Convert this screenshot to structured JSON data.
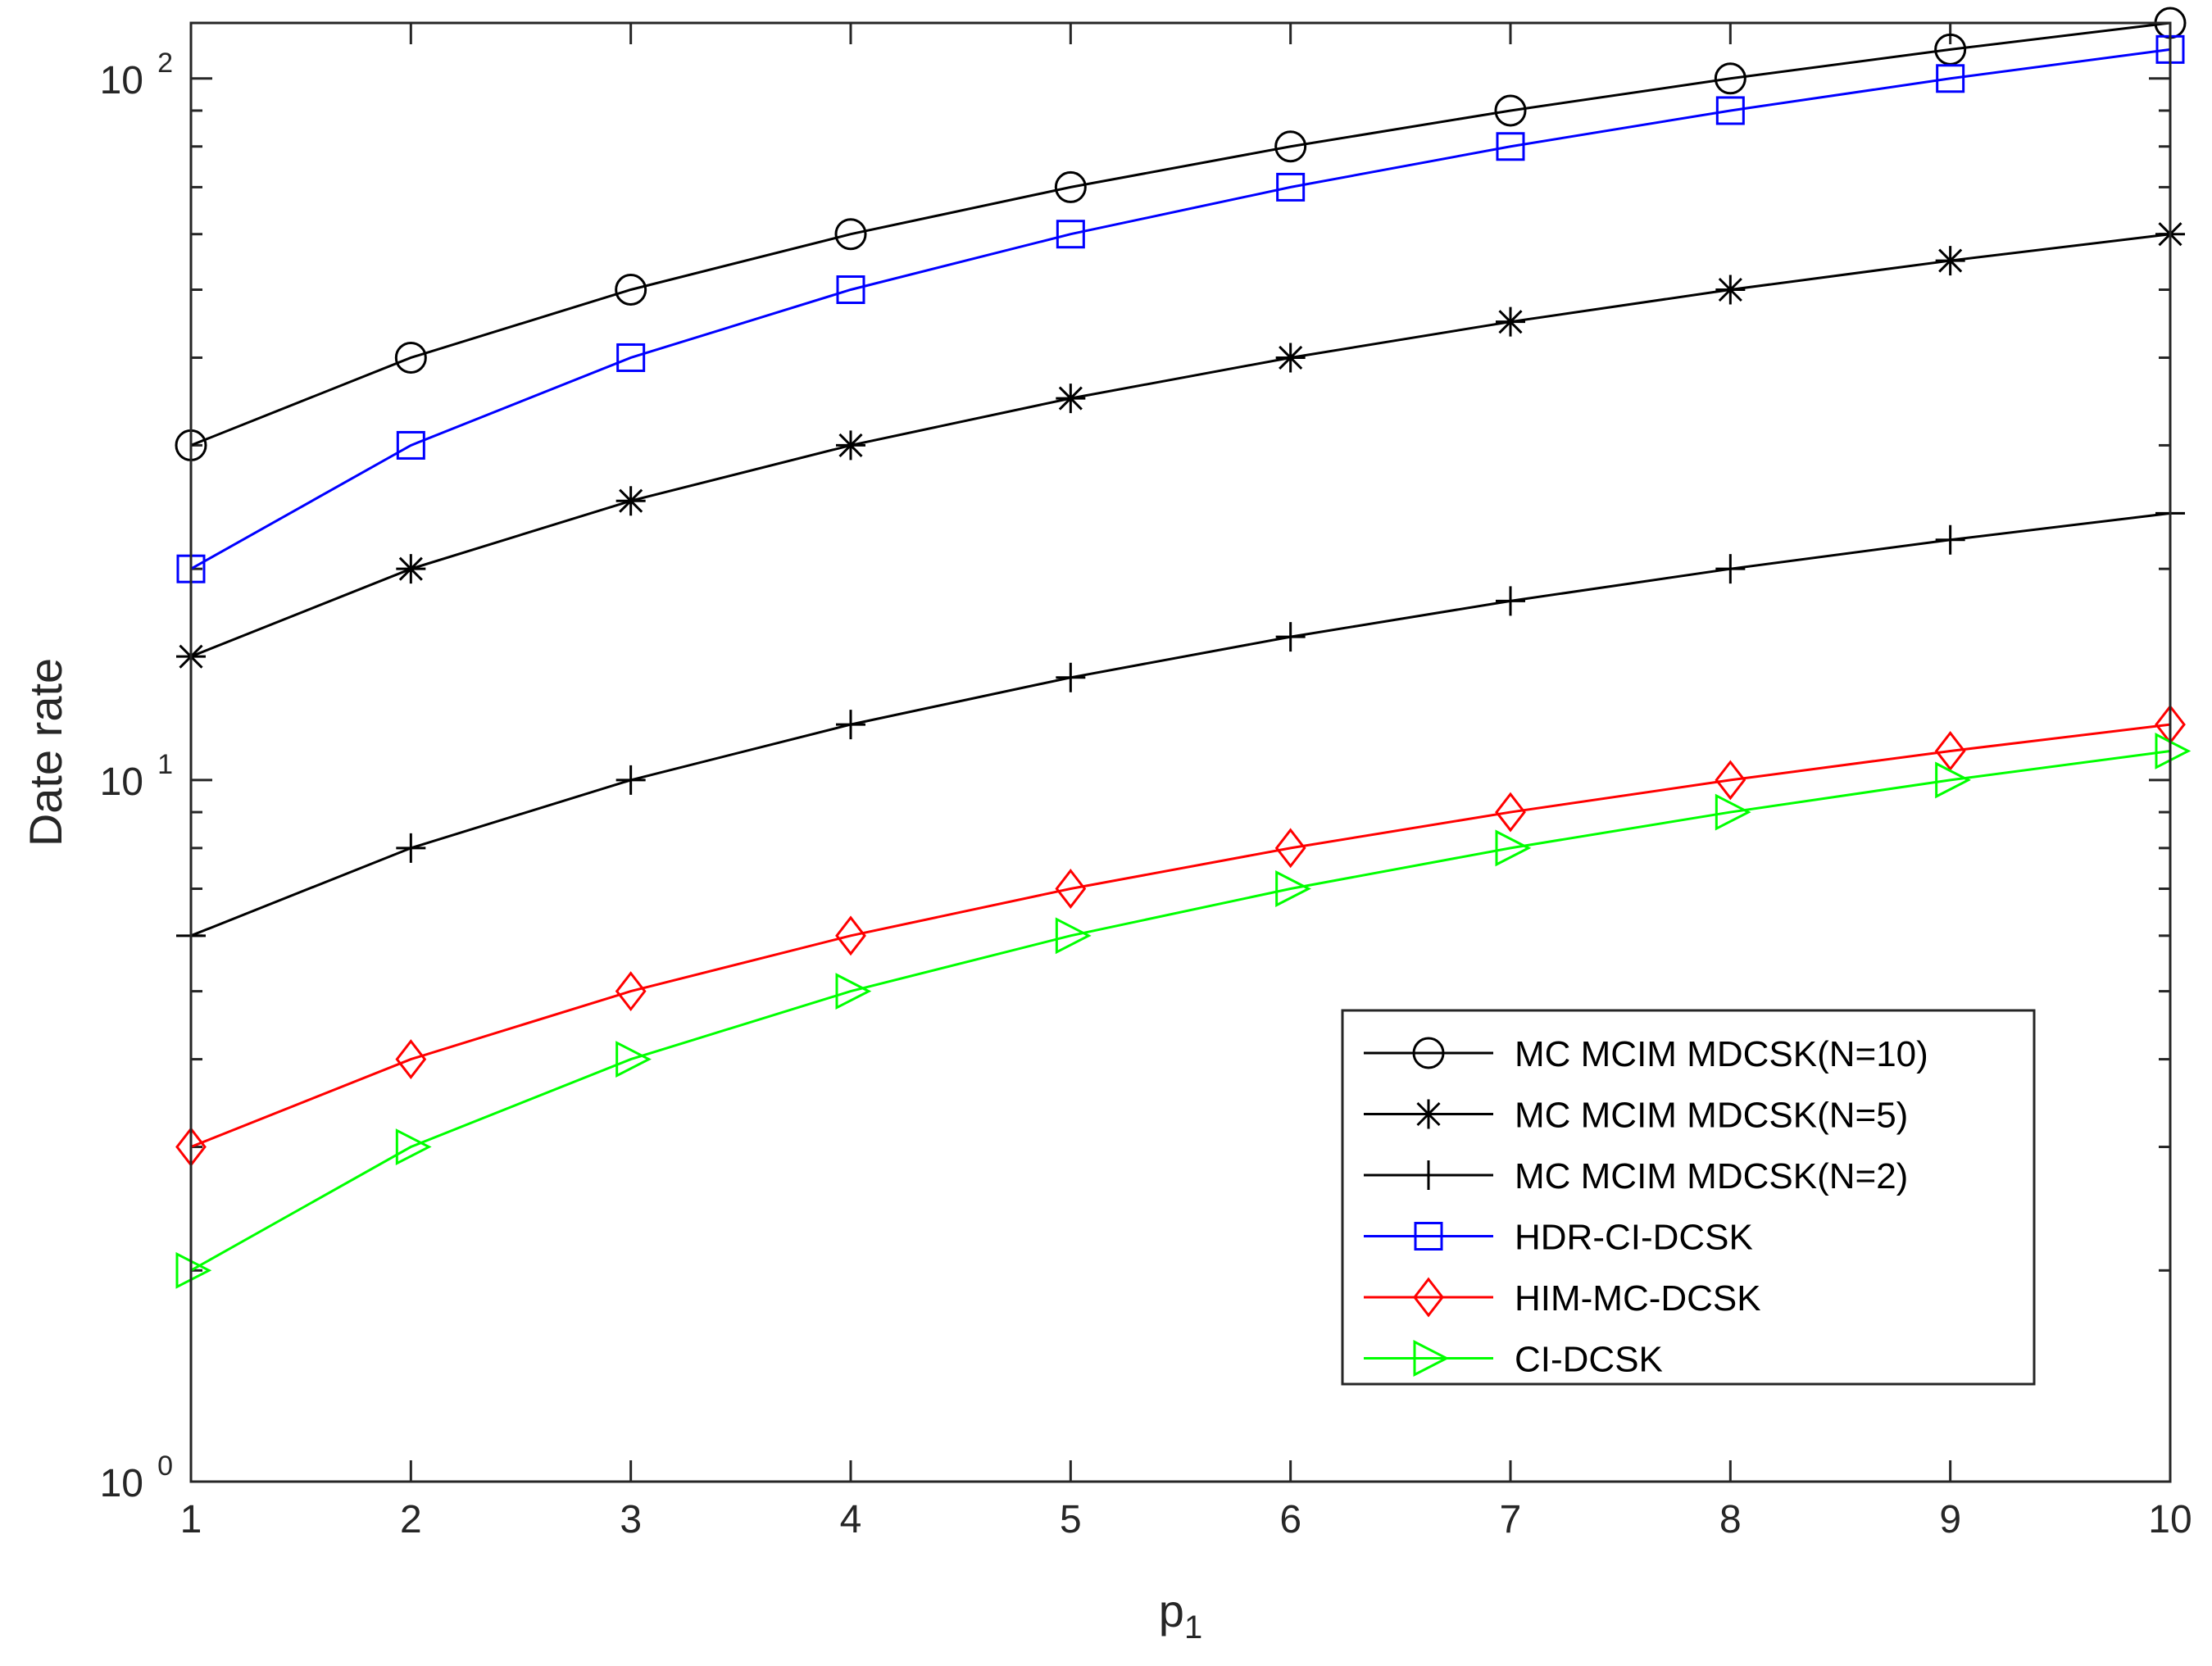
{
  "chart_data": {
    "type": "line",
    "title": "",
    "xlabel": "p",
    "xlabel_subscript": "1",
    "ylabel": "Date rate",
    "yscale": "log",
    "xlim": [
      1,
      10
    ],
    "ylim": [
      1,
      120
    ],
    "grid": false,
    "legend_position": "bottom-right",
    "x": [
      1,
      2,
      3,
      4,
      5,
      6,
      7,
      8,
      9,
      10
    ],
    "x_ticks": [
      "1",
      "2",
      "3",
      "4",
      "5",
      "6",
      "7",
      "8",
      "9",
      "10"
    ],
    "y_ticks": [
      {
        "value": 1,
        "base": "10",
        "exponent": "0"
      },
      {
        "value": 10,
        "base": "10",
        "exponent": "1"
      },
      {
        "value": 100,
        "base": "10",
        "exponent": "2"
      }
    ],
    "series": [
      {
        "name": "MC MCIM MDCSK(N=10)",
        "color": "#000000",
        "marker": "circle",
        "values": [
          30,
          40,
          50,
          60,
          70,
          80,
          90,
          100,
          110,
          120
        ]
      },
      {
        "name": "MC MCIM MDCSK(N=5)",
        "color": "#000000",
        "marker": "asterisk",
        "values": [
          15,
          20,
          25,
          30,
          35,
          40,
          45,
          50,
          55,
          60
        ]
      },
      {
        "name": "MC MCIM MDCSK(N=2)",
        "color": "#000000",
        "marker": "plus",
        "values": [
          6,
          8,
          10,
          12,
          14,
          16,
          18,
          20,
          22,
          24
        ]
      },
      {
        "name": "HDR-CI-DCSK",
        "color": "#0000ff",
        "marker": "square",
        "values": [
          20,
          30,
          40,
          50,
          60,
          70,
          80,
          90,
          100,
          110
        ]
      },
      {
        "name": "HIM-MC-DCSK",
        "color": "#ff0000",
        "marker": "diamond",
        "values": [
          3,
          4,
          5,
          6,
          7,
          8,
          9,
          10,
          11,
          12
        ]
      },
      {
        "name": "CI-DCSK",
        "color": "#00ff00",
        "marker": "triangle-right",
        "values": [
          2,
          3,
          4,
          5,
          6,
          7,
          8,
          9,
          10,
          11
        ]
      }
    ]
  }
}
